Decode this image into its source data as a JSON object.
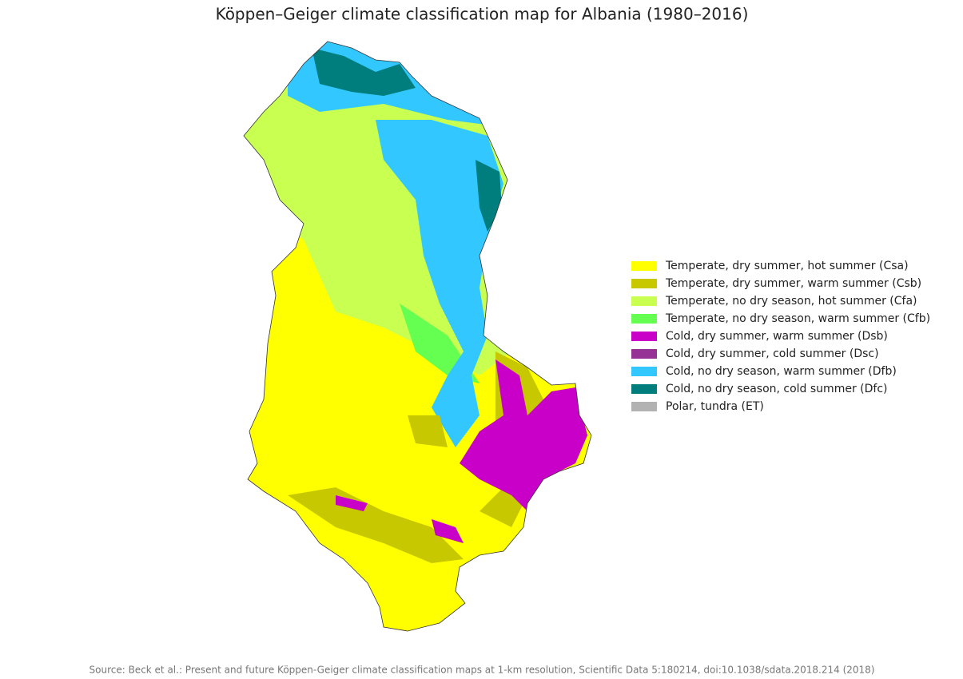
{
  "title": "Köppen–Geiger climate classification map for Albania (1980–2016)",
  "legend": [
    {
      "label": "Temperate, dry summer, hot summer (Csa)",
      "color": "#ffff00"
    },
    {
      "label": "Temperate, dry summer, warm summer (Csb)",
      "color": "#c8c800"
    },
    {
      "label": "Temperate, no dry season, hot summer (Cfa)",
      "color": "#c8ff50"
    },
    {
      "label": "Temperate, no dry season, warm summer (Cfb)",
      "color": "#64ff50"
    },
    {
      "label": "Cold, dry summer, warm summer (Dsb)",
      "color": "#c800c8"
    },
    {
      "label": "Cold, dry summer, cold summer (Dsc)",
      "color": "#963296"
    },
    {
      "label": "Cold, no dry season, warm summer (Dfb)",
      "color": "#32c8ff"
    },
    {
      "label": "Cold, no dry season, cold summer (Dfc)",
      "color": "#007d7d"
    },
    {
      "label": "Polar, tundra (ET)",
      "color": "#b2b2b2"
    }
  ],
  "source": "Source: Beck et al.: Present and future Köppen-Geiger climate classification maps at 1-km resolution, Scientific Data 5:180214, doi:10.1038/sdata.2018.214 (2018)"
}
